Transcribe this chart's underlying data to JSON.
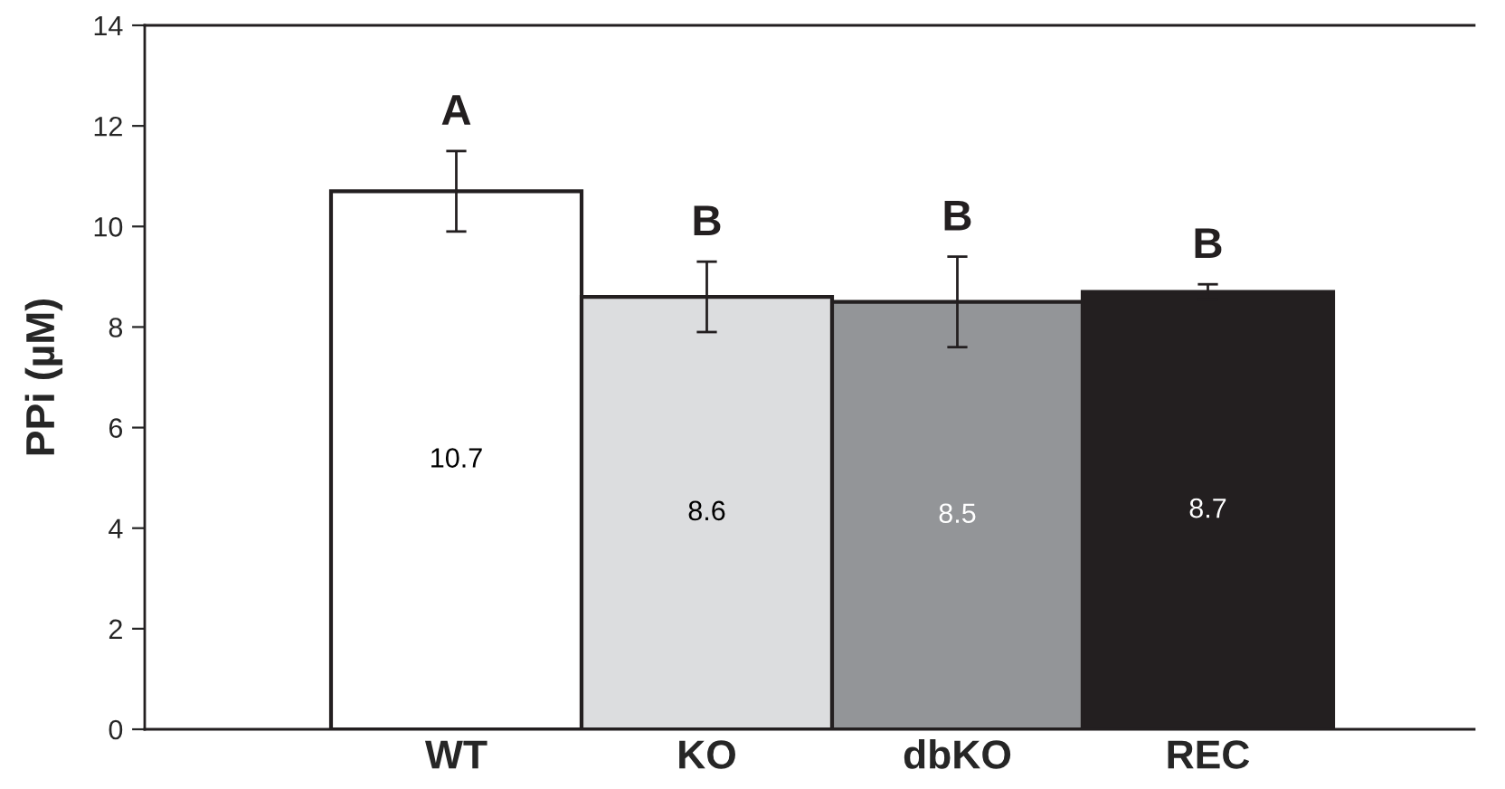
{
  "chart_data": {
    "type": "bar",
    "ylabel": "PPi (µM)",
    "categories": [
      "WT",
      "KO",
      "dbKO",
      "REC"
    ],
    "values": [
      10.7,
      8.6,
      8.5,
      8.7
    ],
    "colors": [
      "#ffffff",
      "#dcdddf",
      "#939598",
      "#231f20"
    ],
    "errors": [
      0.8,
      0.7,
      0.9,
      0.15
    ],
    "data_labels": true,
    "ylim": [
      0,
      14
    ],
    "yticks": [
      0,
      2,
      4,
      6,
      8,
      10,
      12,
      14
    ],
    "grid": false,
    "legend": false,
    "annotations": [
      "A",
      "B",
      "B",
      "B"
    ]
  }
}
